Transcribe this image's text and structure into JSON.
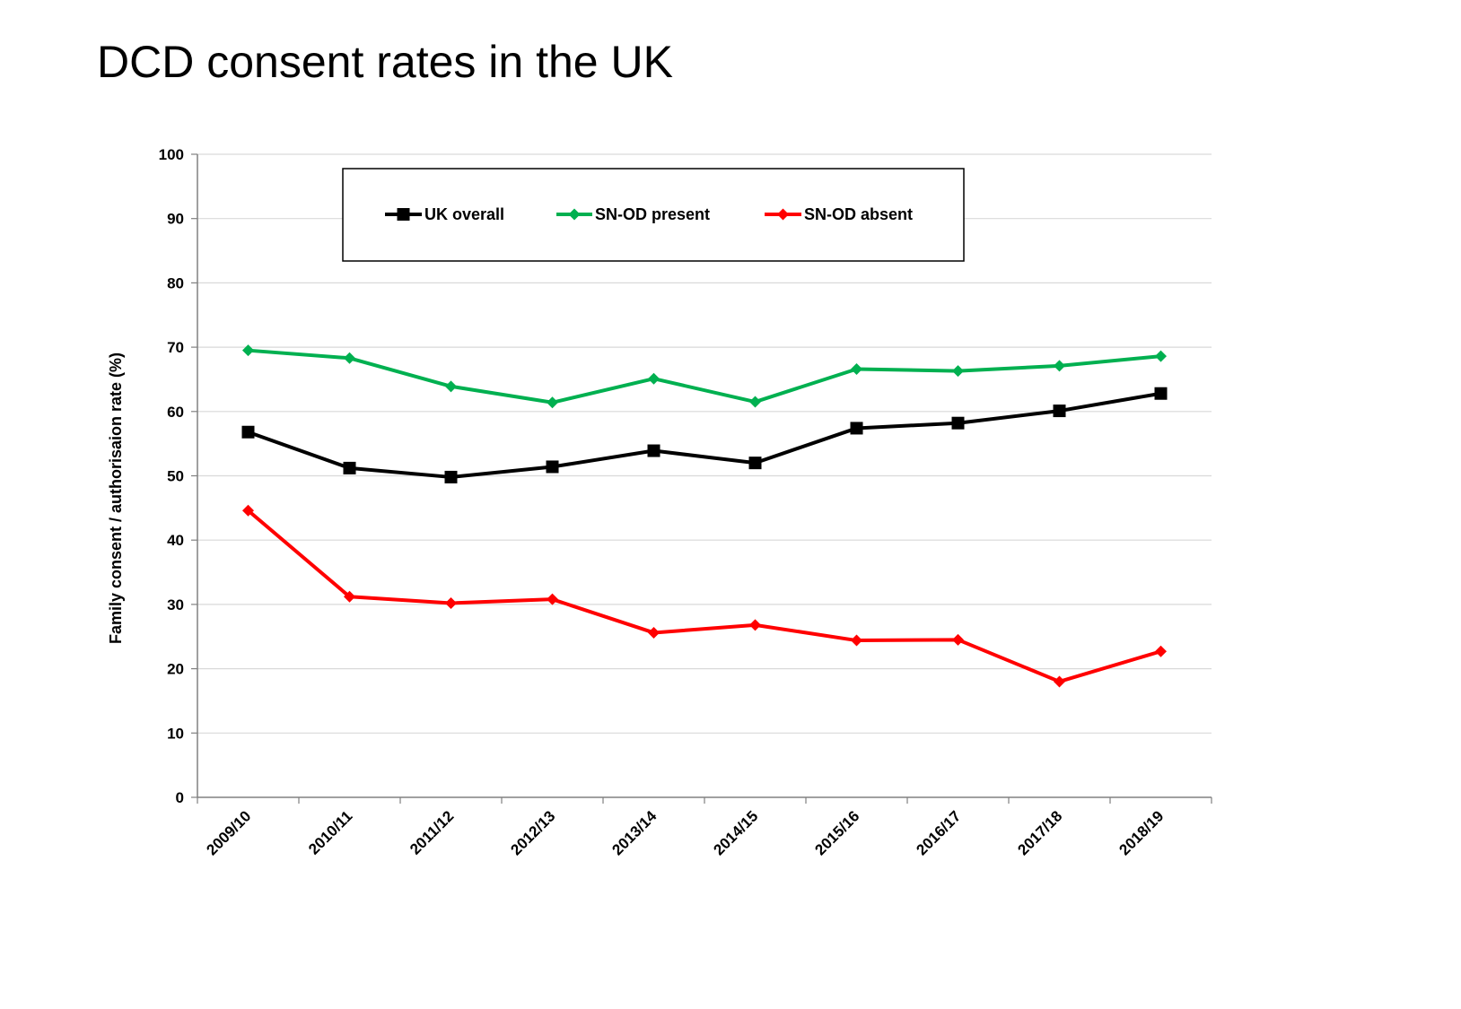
{
  "slide": {
    "title": "DCD consent rates in the UK"
  },
  "chart_data": {
    "type": "line",
    "title": "",
    "xlabel": "",
    "ylabel": "Family consent / authorisaion rate (%)",
    "ylim": [
      0,
      100
    ],
    "yticks": [
      0,
      10,
      20,
      30,
      40,
      50,
      60,
      70,
      80,
      90,
      100
    ],
    "grid": true,
    "legend_position": "top",
    "categories": [
      "2009/10",
      "2010/11",
      "2011/12",
      "2012/13",
      "2013/14",
      "2014/15",
      "2015/16",
      "2016/17",
      "2017/18",
      "2018/19"
    ],
    "series": [
      {
        "name": "UK overall",
        "color": "#000000",
        "marker": "square",
        "values": [
          56.8,
          51.2,
          49.8,
          51.4,
          53.9,
          52.0,
          57.4,
          58.2,
          60.1,
          62.8
        ]
      },
      {
        "name": "SN-OD present",
        "color": "#00b050",
        "marker": "diamond",
        "values": [
          69.5,
          68.3,
          63.9,
          61.4,
          65.1,
          61.5,
          66.6,
          66.3,
          67.1,
          68.6
        ]
      },
      {
        "name": "SN-OD absent",
        "color": "#ff0000",
        "marker": "diamond",
        "values": [
          44.6,
          31.2,
          30.2,
          30.8,
          25.6,
          26.8,
          24.4,
          24.5,
          18.0,
          22.7
        ]
      }
    ]
  }
}
